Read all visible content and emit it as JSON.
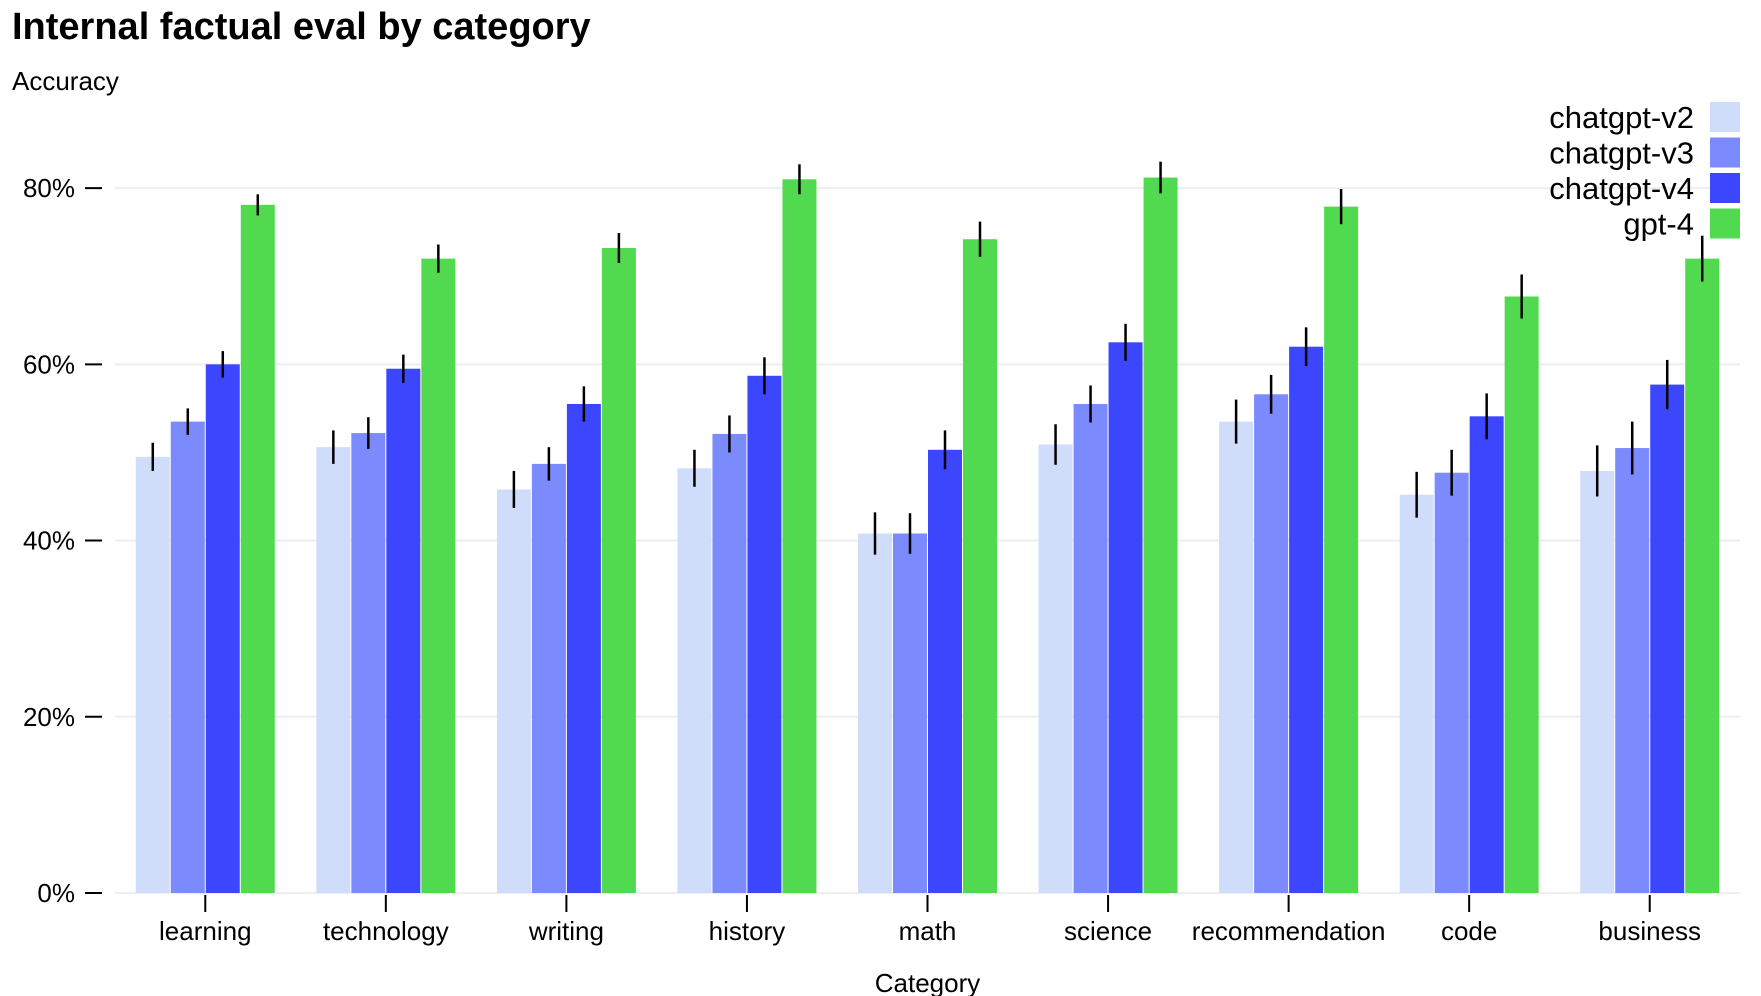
{
  "chart_data": {
    "type": "bar",
    "title": "Internal factual eval by category",
    "ylabel": "Accuracy",
    "xlabel": "Category",
    "ylim": [
      0,
      0.9
    ],
    "yticks": [
      0,
      0.2,
      0.4,
      0.6,
      0.8
    ],
    "ytick_labels": [
      "0%",
      "20%",
      "40%",
      "60%",
      "80%"
    ],
    "grid": true,
    "legend_position": "top-right",
    "categories": [
      "learning",
      "technology",
      "writing",
      "history",
      "math",
      "science",
      "recommendation",
      "code",
      "business"
    ],
    "series": [
      {
        "name": "chatgpt-v2",
        "color": "#cfddfb",
        "values": [
          0.495,
          0.506,
          0.458,
          0.482,
          0.408,
          0.509,
          0.535,
          0.452,
          0.479
        ],
        "err": [
          0.016,
          0.019,
          0.021,
          0.021,
          0.024,
          0.023,
          0.025,
          0.026,
          0.029
        ]
      },
      {
        "name": "chatgpt-v3",
        "color": "#7b8afc",
        "values": [
          0.535,
          0.522,
          0.487,
          0.521,
          0.408,
          0.555,
          0.566,
          0.477,
          0.505
        ],
        "err": [
          0.015,
          0.018,
          0.019,
          0.021,
          0.023,
          0.021,
          0.022,
          0.026,
          0.03
        ]
      },
      {
        "name": "chatgpt-v4",
        "color": "#3c46fd",
        "values": [
          0.6,
          0.595,
          0.555,
          0.587,
          0.503,
          0.625,
          0.62,
          0.541,
          0.577
        ],
        "err": [
          0.015,
          0.016,
          0.02,
          0.021,
          0.022,
          0.021,
          0.022,
          0.026,
          0.028
        ]
      },
      {
        "name": "gpt-4",
        "color": "#51d950",
        "values": [
          0.781,
          0.72,
          0.732,
          0.81,
          0.742,
          0.812,
          0.779,
          0.677,
          0.72
        ],
        "err": [
          0.012,
          0.016,
          0.017,
          0.017,
          0.02,
          0.018,
          0.02,
          0.025,
          0.026
        ]
      }
    ]
  }
}
